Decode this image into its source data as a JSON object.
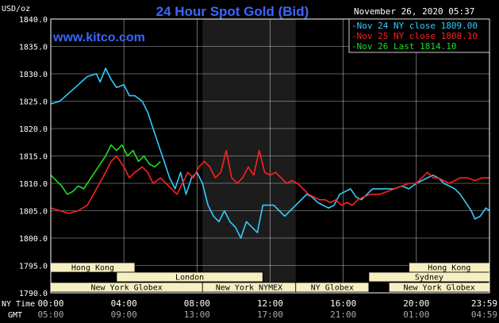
{
  "chart_data": {
    "type": "line",
    "title": "24 Hour Spot Gold (Bid)",
    "watermark": "www.kitco.com",
    "date": "November 26, 2020 05:37",
    "ylabel": "USD/oz",
    "ylim": [
      1790,
      1840
    ],
    "yticks": [
      "1840.0",
      "1835.0",
      "1830.0",
      "1825.0",
      "1820.0",
      "1815.0",
      "1810.0",
      "1805.0",
      "1800.0",
      "1795.0",
      "1790.0"
    ],
    "xlim_hours": [
      0,
      24
    ],
    "row_labels": {
      "ny": "NY Time",
      "gmt": "GMT"
    },
    "xticks": [
      {
        "h": 0,
        "ny": "00:00",
        "gmt": "05:00"
      },
      {
        "h": 4,
        "ny": "04:00",
        "gmt": "09:00"
      },
      {
        "h": 8,
        "ny": "08:00",
        "gmt": "13:00"
      },
      {
        "h": 12,
        "ny": "12:00",
        "gmt": "17:00"
      },
      {
        "h": 16,
        "ny": "16:00",
        "gmt": "21:00"
      },
      {
        "h": 20,
        "ny": "20:00",
        "gmt": "01:00"
      },
      {
        "h": 24,
        "ny": "23:59",
        "gmt": "04:59"
      }
    ],
    "highlight_hours": [
      8.3,
      13.4
    ],
    "grid": true,
    "legend": {
      "placement": "top-right"
    },
    "series": [
      {
        "name": "Nov 24 NY close 1809.00",
        "color": "#33ccff",
        "points": [
          [
            0,
            1824.5
          ],
          [
            0.5,
            1825
          ],
          [
            1,
            1826.5
          ],
          [
            1.5,
            1828
          ],
          [
            2,
            1829.5
          ],
          [
            2.5,
            1830
          ],
          [
            2.7,
            1828.5
          ],
          [
            3,
            1831
          ],
          [
            3.3,
            1829
          ],
          [
            3.6,
            1827.5
          ],
          [
            4,
            1828
          ],
          [
            4.3,
            1826
          ],
          [
            4.6,
            1826
          ],
          [
            5,
            1825
          ],
          [
            5.3,
            1823
          ],
          [
            5.6,
            1820
          ],
          [
            5.9,
            1817
          ],
          [
            6.2,
            1814
          ],
          [
            6.5,
            1811
          ],
          [
            6.8,
            1809
          ],
          [
            7.1,
            1812
          ],
          [
            7.4,
            1808
          ],
          [
            7.7,
            1811
          ],
          [
            8,
            1812
          ],
          [
            8.3,
            1810
          ],
          [
            8.6,
            1806
          ],
          [
            8.9,
            1804
          ],
          [
            9.2,
            1803
          ],
          [
            9.5,
            1805
          ],
          [
            9.8,
            1803
          ],
          [
            10.1,
            1802
          ],
          [
            10.4,
            1800
          ],
          [
            10.7,
            1803
          ],
          [
            11,
            1802
          ],
          [
            11.3,
            1801
          ],
          [
            11.6,
            1806
          ],
          [
            11.9,
            1806
          ],
          [
            12.2,
            1806
          ],
          [
            12.5,
            1805
          ],
          [
            12.8,
            1804
          ],
          [
            13.1,
            1805
          ],
          [
            13.4,
            1806
          ],
          [
            13.7,
            1807
          ],
          [
            14,
            1808
          ],
          [
            14.3,
            1807.5
          ],
          [
            14.6,
            1806.5
          ],
          [
            14.9,
            1806
          ],
          [
            15.2,
            1805.5
          ],
          [
            15.5,
            1806
          ],
          [
            15.8,
            1808
          ],
          [
            16.1,
            1808.5
          ],
          [
            16.4,
            1809
          ],
          [
            16.7,
            1807.5
          ],
          [
            17,
            1807
          ],
          [
            17.3,
            1808
          ],
          [
            17.6,
            1809
          ],
          [
            18,
            1809
          ],
          [
            18.4,
            1809
          ],
          [
            18.8,
            1809
          ],
          [
            19.2,
            1809.5
          ],
          [
            19.6,
            1809
          ],
          [
            20,
            1810
          ],
          [
            20.3,
            1810.5
          ],
          [
            20.6,
            1811
          ],
          [
            20.9,
            1811.5
          ],
          [
            21.2,
            1811
          ],
          [
            21.5,
            1810
          ],
          [
            21.8,
            1809.5
          ],
          [
            22.1,
            1809
          ],
          [
            22.4,
            1808
          ],
          [
            22.7,
            1806.5
          ],
          [
            23,
            1805
          ],
          [
            23.2,
            1803.5
          ],
          [
            23.5,
            1804
          ],
          [
            23.8,
            1805.5
          ],
          [
            24,
            1805
          ]
        ]
      },
      {
        "name": "Nov 25 NY close 1808.10",
        "color": "#ff2020",
        "points": [
          [
            0,
            1805.5
          ],
          [
            0.5,
            1805
          ],
          [
            1,
            1804.5
          ],
          [
            1.5,
            1805
          ],
          [
            2,
            1806
          ],
          [
            2.5,
            1809
          ],
          [
            3,
            1812
          ],
          [
            3.3,
            1814
          ],
          [
            3.6,
            1815
          ],
          [
            4,
            1813
          ],
          [
            4.3,
            1811
          ],
          [
            4.6,
            1812
          ],
          [
            5,
            1813
          ],
          [
            5.3,
            1812
          ],
          [
            5.6,
            1810
          ],
          [
            6,
            1811
          ],
          [
            6.3,
            1810
          ],
          [
            6.6,
            1809
          ],
          [
            6.9,
            1808
          ],
          [
            7.2,
            1810
          ],
          [
            7.5,
            1812
          ],
          [
            7.8,
            1811
          ],
          [
            8.1,
            1813
          ],
          [
            8.4,
            1814
          ],
          [
            8.7,
            1813
          ],
          [
            9,
            1811
          ],
          [
            9.3,
            1812
          ],
          [
            9.6,
            1816
          ],
          [
            9.9,
            1811
          ],
          [
            10.2,
            1810
          ],
          [
            10.5,
            1811
          ],
          [
            10.8,
            1813
          ],
          [
            11.1,
            1811.5
          ],
          [
            11.4,
            1816
          ],
          [
            11.7,
            1812
          ],
          [
            12,
            1811.5
          ],
          [
            12.3,
            1812
          ],
          [
            12.6,
            1811
          ],
          [
            12.9,
            1810
          ],
          [
            13.2,
            1810.5
          ],
          [
            13.5,
            1810
          ],
          [
            13.8,
            1809
          ],
          [
            14.1,
            1808
          ],
          [
            14.4,
            1807.5
          ],
          [
            14.7,
            1807
          ],
          [
            15,
            1807
          ],
          [
            15.3,
            1806.5
          ],
          [
            15.6,
            1807
          ],
          [
            15.9,
            1806
          ],
          [
            16.2,
            1806.5
          ],
          [
            16.5,
            1806
          ],
          [
            16.8,
            1807
          ],
          [
            17.1,
            1807.5
          ],
          [
            17.5,
            1808
          ],
          [
            18,
            1808
          ],
          [
            18.4,
            1808.5
          ],
          [
            18.8,
            1809
          ],
          [
            19.2,
            1809.5
          ],
          [
            19.6,
            1810
          ],
          [
            20,
            1810
          ],
          [
            20.3,
            1811
          ],
          [
            20.6,
            1812
          ],
          [
            20.9,
            1811
          ],
          [
            21.2,
            1811
          ],
          [
            21.5,
            1810.5
          ],
          [
            21.8,
            1810
          ],
          [
            22.1,
            1810.5
          ],
          [
            22.4,
            1811
          ],
          [
            22.8,
            1811
          ],
          [
            23.2,
            1810.5
          ],
          [
            23.6,
            1811
          ],
          [
            24,
            1811
          ]
        ]
      },
      {
        "name": "Nov 26 Last 1814.10",
        "color": "#22dd22",
        "points": [
          [
            0,
            1811.5
          ],
          [
            0.3,
            1810.5
          ],
          [
            0.6,
            1809.5
          ],
          [
            0.9,
            1808
          ],
          [
            1.2,
            1808.5
          ],
          [
            1.5,
            1809.5
          ],
          [
            1.8,
            1809
          ],
          [
            2.1,
            1810.5
          ],
          [
            2.4,
            1812
          ],
          [
            2.7,
            1813.5
          ],
          [
            3,
            1815
          ],
          [
            3.3,
            1817
          ],
          [
            3.6,
            1816
          ],
          [
            3.9,
            1817
          ],
          [
            4.2,
            1815
          ],
          [
            4.5,
            1816
          ],
          [
            4.8,
            1814
          ],
          [
            5.1,
            1815
          ],
          [
            5.4,
            1813.5
          ],
          [
            5.7,
            1813
          ],
          [
            6,
            1814
          ]
        ]
      }
    ],
    "sessions": [
      {
        "label": "Hong Kong",
        "start": 0,
        "end": 4.6,
        "row": 0
      },
      {
        "label": "Hong Kong",
        "start": 19.6,
        "end": 24,
        "row": 0
      },
      {
        "label": "London",
        "start": 3.6,
        "end": 11.6,
        "row": 1
      },
      {
        "label": "Sydney",
        "start": 17.4,
        "end": 24,
        "row": 1
      },
      {
        "label": "New York Globex",
        "start": 0,
        "end": 8.3,
        "row": 2
      },
      {
        "label": "New York NYMEX",
        "start": 8.3,
        "end": 13.4,
        "row": 2
      },
      {
        "label": "NY Globex",
        "start": 13.4,
        "end": 17.4,
        "row": 2
      },
      {
        "label": "New York Globex",
        "start": 18.5,
        "end": 24,
        "row": 2
      }
    ]
  },
  "colors": {
    "background": "#000000",
    "grid": "#ffffff",
    "title": "#3a66ff",
    "session_fill": "#f6efc2",
    "highlight": "#1c1c1c"
  }
}
